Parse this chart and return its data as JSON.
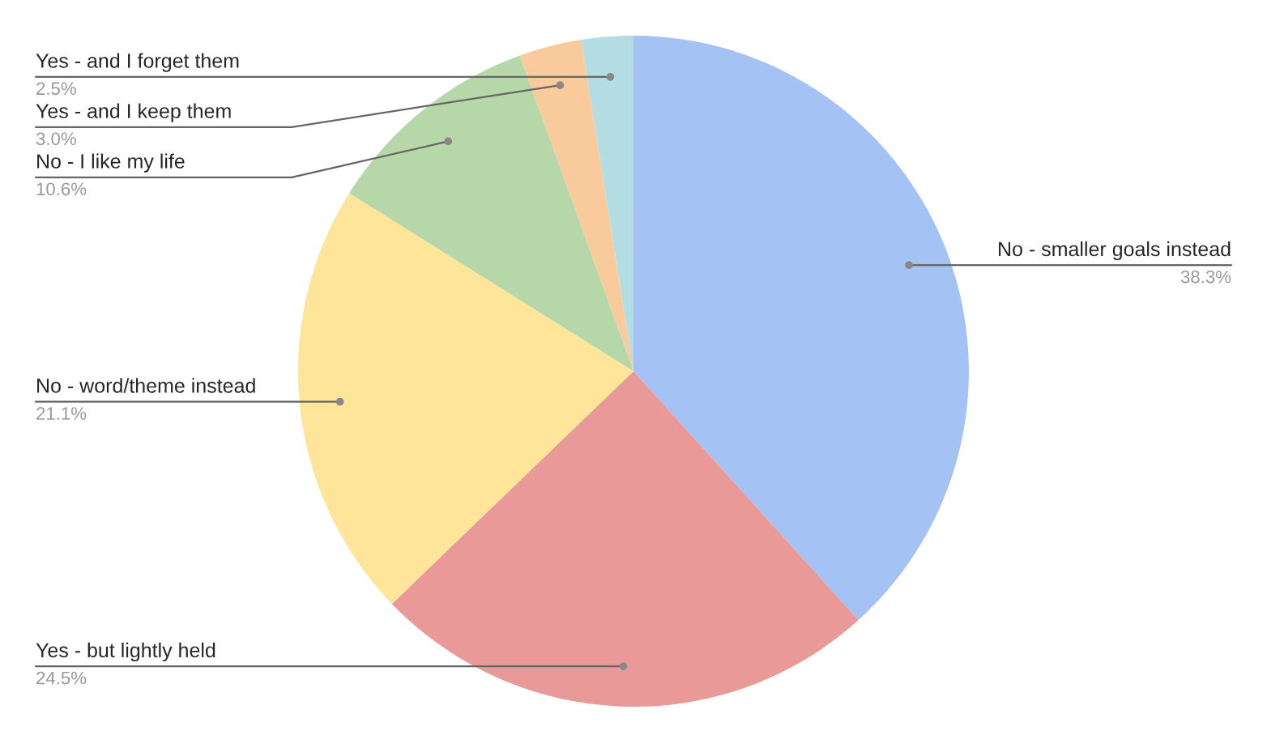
{
  "chart_data": {
    "type": "pie",
    "categories": [
      "No - smaller goals instead",
      "Yes - but lightly held",
      "No - word/theme instead",
      "No - I like my life",
      "Yes - and I keep them",
      "Yes - and I forget them"
    ],
    "values": [
      38.3,
      24.5,
      21.1,
      10.6,
      3.0,
      2.5
    ],
    "colors": [
      "#a4c2f4",
      "#ea9999",
      "#ffe599",
      "#b6d7a8",
      "#f9cb9c",
      "#b4dde3"
    ],
    "value_labels": [
      "38.3%",
      "24.5%",
      "21.1%",
      "10.6%",
      "3.0%",
      "2.5%"
    ],
    "legend": false
  }
}
